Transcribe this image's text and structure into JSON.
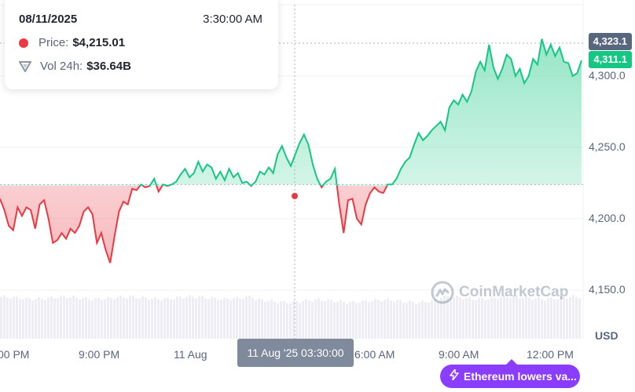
{
  "tooltip": {
    "date": "08/11/2025",
    "time": "3:30:00 AM",
    "price_label": "Price:",
    "price_value": "$4,215.01",
    "vol_label": "Vol 24h:",
    "vol_value": "$36.64B"
  },
  "badges": {
    "high": "4,323.1",
    "current": "4,311.1"
  },
  "cursor_label": "11 Aug '25 03:30:00",
  "currency": "USD",
  "watermark": "CoinMarketCap",
  "news": "Ethereum lowers va...",
  "colors": {
    "up": "#16c784",
    "down": "#ea3943",
    "news": "#8b3dff",
    "grid": "#eff2f5"
  },
  "chart_data": {
    "type": "area",
    "title": "",
    "ylabel": "",
    "xlabel": "",
    "ylim": [
      4130,
      4360
    ],
    "baseline": 4224,
    "y_ticks": [
      "4,150.0",
      "4,200.0",
      "4,250.0",
      "4,300.0"
    ],
    "x_ticks": [
      "00 PM",
      "9:00 PM",
      "11 Aug",
      "6:00 AM",
      "9:00 AM",
      "12:00 PM"
    ],
    "series": [
      {
        "values": [
          4214,
          4206,
          4195,
          4192,
          4208,
          4202,
          4208,
          4206,
          4193,
          4210,
          4213,
          4200,
          4183,
          4185,
          4190,
          4186,
          4193,
          4190,
          4195,
          4205,
          4208,
          4203,
          4183,
          4190,
          4178,
          4169,
          4188,
          4205,
          4212,
          4210,
          4221,
          4220,
          4224,
          4222,
          4223,
          4228,
          4219,
          4224,
          4223,
          4224,
          4226,
          4231,
          4235,
          4229,
          4232,
          4240,
          4233,
          4238,
          4236,
          4228,
          4233,
          4227,
          4235,
          4229,
          4232,
          4225,
          4226,
          4223,
          4226,
          4233,
          4231,
          4236,
          4232,
          4245,
          4251,
          4243,
          4237,
          4245,
          4253,
          4259,
          4252,
          4238,
          4228,
          4222,
          4226,
          4228,
          4235,
          4210,
          4190,
          4213,
          4214,
          4200,
          4196,
          4210,
          4218,
          4222,
          4219,
          4218,
          4224,
          4224,
          4228,
          4235,
          4240,
          4243,
          4252,
          4260,
          4255,
          4258,
          4262,
          4265,
          4268,
          4262,
          4278,
          4283,
          4280,
          4287,
          4282,
          4289,
          4303,
          4310,
          4304,
          4322,
          4306,
          4298,
          4305,
          4315,
          4312,
          4300,
          4305,
          4295,
          4300,
          4312,
          4308,
          4326,
          4315,
          4322,
          4314,
          4320,
          4310,
          4309,
          4300,
          4302,
          4311
        ],
        "price_min": 4169,
        "price_max": 4326
      }
    ],
    "volume": "24h volume bars (light grey) along the bottom"
  }
}
